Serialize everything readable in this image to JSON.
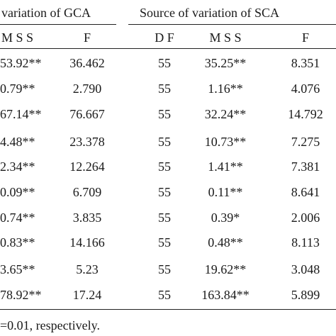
{
  "table": {
    "group_headers": {
      "gca": "variation of GCA",
      "sca": "Source of variation of SCA"
    },
    "sub_headers": {
      "gca_mss": "M S S",
      "gca_f": "F",
      "sca_df": "D F",
      "sca_mss": "M S S",
      "sca_f": "F"
    },
    "rows": [
      {
        "gca_mss": "53.92**",
        "gca_f": "36.462",
        "df": "55",
        "sca_mss": "35.25**",
        "sca_f": "8.351"
      },
      {
        "gca_mss": "0.79**",
        "gca_f": "2.790",
        "df": "55",
        "sca_mss": "1.16**",
        "sca_f": "4.076"
      },
      {
        "gca_mss": "67.14**",
        "gca_f": "76.667",
        "df": "55",
        "sca_mss": "32.24**",
        "sca_f": "14.792"
      },
      {
        "gca_mss": "4.48**",
        "gca_f": "23.378",
        "df": "55",
        "sca_mss": "10.73**",
        "sca_f": "7.275"
      },
      {
        "gca_mss": "2.34**",
        "gca_f": "12.264",
        "df": "55",
        "sca_mss": "1.41**",
        "sca_f": "7.381"
      },
      {
        "gca_mss": "0.09**",
        "gca_f": "6.709",
        "df": "55",
        "sca_mss": "0.11**",
        "sca_f": "8.641"
      },
      {
        "gca_mss": "0.74**",
        "gca_f": "3.835",
        "df": "55",
        "sca_mss": "0.39*",
        "sca_f": "2.006"
      },
      {
        "gca_mss": "0.83**",
        "gca_f": "14.166",
        "df": "55",
        "sca_mss": "0.48**",
        "sca_f": "8.113"
      },
      {
        "gca_mss": "3.65**",
        "gca_f": "5.23",
        "df": "55",
        "sca_mss": "19.62**",
        "sca_f": "3.048"
      },
      {
        "gca_mss": "78.92**",
        "gca_f": "17.24",
        "df": "55",
        "sca_mss": "163.84**",
        "sca_f": "5.899"
      }
    ]
  },
  "footnote": "=0.01, respectively."
}
